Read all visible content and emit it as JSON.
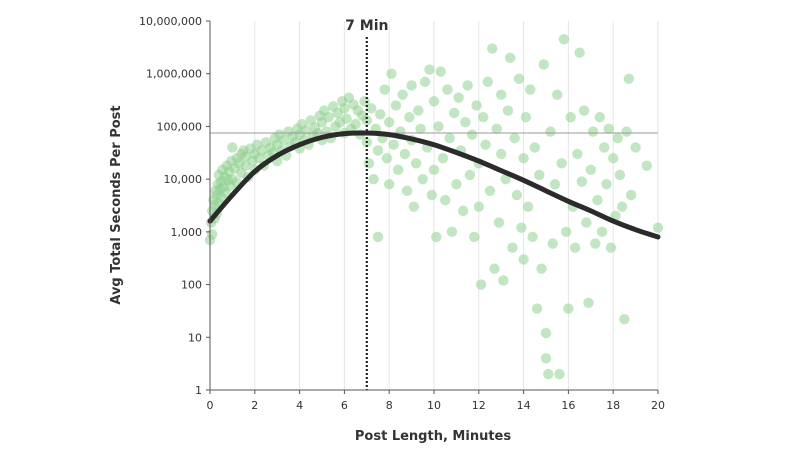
{
  "chart_data": {
    "type": "scatter",
    "title": "",
    "xlabel": "Post Length, Minutes",
    "ylabel": "Avg Total Seconds Per Post",
    "xlim": [
      0,
      20
    ],
    "ylim": [
      1,
      10000000
    ],
    "y_scale": "log",
    "x_ticks": [
      0,
      2,
      4,
      6,
      8,
      10,
      12,
      14,
      16,
      18,
      20
    ],
    "x_tick_labels": [
      "0",
      "2",
      "4",
      "6",
      "8",
      "10",
      "12",
      "14",
      "16",
      "18",
      "20"
    ],
    "y_ticks": [
      1,
      10,
      100,
      1000,
      10000,
      100000,
      1000000,
      10000000
    ],
    "y_tick_labels": [
      "1",
      "10",
      "100",
      "1,000",
      "10,000",
      "100,000",
      "1,000,000",
      "10,000,000"
    ],
    "grid": "vertical",
    "colors": {
      "points": "#8fcf8f",
      "curve": "#2b2b2b",
      "reference": "#999999",
      "grid": "#e6e6e6"
    },
    "annotations": [
      {
        "text": "7 Min",
        "x": 7,
        "style": "vertical-dotted-line"
      },
      {
        "style": "horizontal-reference-line",
        "y": 75000
      }
    ],
    "fit_curve": {
      "name": "",
      "x": [
        0,
        1,
        2,
        3,
        4,
        5,
        6,
        7,
        8,
        9,
        10,
        11,
        12,
        13,
        14,
        15,
        16,
        17,
        18,
        19,
        20
      ],
      "y": [
        1600,
        5000,
        14000,
        28000,
        45000,
        62000,
        73000,
        75000,
        70000,
        58000,
        45000,
        32000,
        22000,
        14500,
        9500,
        6000,
        3800,
        2500,
        1600,
        1100,
        800
      ]
    },
    "series": [
      {
        "points": [
          [
            0.0,
            700
          ],
          [
            0.05,
            1500
          ],
          [
            0.1,
            2500
          ],
          [
            0.1,
            900
          ],
          [
            0.15,
            4000
          ],
          [
            0.2,
            1800
          ],
          [
            0.2,
            3200
          ],
          [
            0.25,
            6000
          ],
          [
            0.3,
            2200
          ],
          [
            0.3,
            5000
          ],
          [
            0.35,
            8000
          ],
          [
            0.4,
            3500
          ],
          [
            0.4,
            12000
          ],
          [
            0.45,
            6500
          ],
          [
            0.5,
            9000
          ],
          [
            0.5,
            4500
          ],
          [
            0.55,
            15000
          ],
          [
            0.6,
            7000
          ],
          [
            0.65,
            11000
          ],
          [
            0.7,
            5500
          ],
          [
            0.75,
            18000
          ],
          [
            0.8,
            9500
          ],
          [
            0.85,
            14000
          ],
          [
            0.9,
            7500
          ],
          [
            0.95,
            22000
          ],
          [
            1.0,
            10000
          ],
          [
            1.0,
            40000
          ],
          [
            1.1,
            16000
          ],
          [
            1.2,
            25000
          ],
          [
            1.2,
            8500
          ],
          [
            1.3,
            20000
          ],
          [
            1.4,
            30000
          ],
          [
            1.4,
            13000
          ],
          [
            1.5,
            35000
          ],
          [
            1.6,
            18000
          ],
          [
            1.6,
            27000
          ],
          [
            1.7,
            11000
          ],
          [
            1.8,
            38000
          ],
          [
            1.9,
            22000
          ],
          [
            2.0,
            30000
          ],
          [
            2.0,
            15000
          ],
          [
            2.1,
            45000
          ],
          [
            2.2,
            25000
          ],
          [
            2.3,
            35000
          ],
          [
            2.4,
            18000
          ],
          [
            2.5,
            50000
          ],
          [
            2.6,
            28000
          ],
          [
            2.7,
            40000
          ],
          [
            2.8,
            32000
          ],
          [
            2.9,
            60000
          ],
          [
            3.0,
            22000
          ],
          [
            3.0,
            45000
          ],
          [
            3.1,
            70000
          ],
          [
            3.2,
            35000
          ],
          [
            3.3,
            55000
          ],
          [
            3.4,
            28000
          ],
          [
            3.5,
            80000
          ],
          [
            3.6,
            42000
          ],
          [
            3.7,
            65000
          ],
          [
            3.8,
            50000
          ],
          [
            3.9,
            90000
          ],
          [
            4.0,
            38000
          ],
          [
            4.0,
            70000
          ],
          [
            4.1,
            110000
          ],
          [
            4.2,
            55000
          ],
          [
            4.3,
            85000
          ],
          [
            4.4,
            45000
          ],
          [
            4.5,
            130000
          ],
          [
            4.6,
            65000
          ],
          [
            4.7,
            95000
          ],
          [
            4.8,
            75000
          ],
          [
            4.9,
            160000
          ],
          [
            5.0,
            55000
          ],
          [
            5.0,
            120000
          ],
          [
            5.1,
            200000
          ],
          [
            5.2,
            80000
          ],
          [
            5.3,
            150000
          ],
          [
            5.4,
            60000
          ],
          [
            5.5,
            240000
          ],
          [
            5.6,
            100000
          ],
          [
            5.7,
            180000
          ],
          [
            5.8,
            120000
          ],
          [
            5.9,
            300000
          ],
          [
            6.0,
            75000
          ],
          [
            6.0,
            220000
          ],
          [
            6.1,
            140000
          ],
          [
            6.2,
            350000
          ],
          [
            6.3,
            90000
          ],
          [
            6.4,
            260000
          ],
          [
            6.5,
            110000
          ],
          [
            6.6,
            200000
          ],
          [
            6.7,
            70000
          ],
          [
            6.8,
            160000
          ],
          [
            6.9,
            300000
          ],
          [
            7.0,
            50000
          ],
          [
            7.0,
            130000
          ],
          [
            7.1,
            20000
          ],
          [
            7.2,
            220000
          ],
          [
            7.3,
            10000
          ],
          [
            7.4,
            90000
          ],
          [
            7.5,
            35000
          ],
          [
            7.5,
            800
          ],
          [
            7.6,
            170000
          ],
          [
            7.7,
            60000
          ],
          [
            7.8,
            500000
          ],
          [
            7.9,
            25000
          ],
          [
            8.0,
            120000
          ],
          [
            8.0,
            8000
          ],
          [
            8.1,
            1000000
          ],
          [
            8.2,
            45000
          ],
          [
            8.3,
            250000
          ],
          [
            8.4,
            15000
          ],
          [
            8.5,
            80000
          ],
          [
            8.6,
            400000
          ],
          [
            8.7,
            30000
          ],
          [
            8.8,
            6000
          ],
          [
            8.9,
            150000
          ],
          [
            9.0,
            55000
          ],
          [
            9.0,
            600000
          ],
          [
            9.1,
            3000
          ],
          [
            9.2,
            20000
          ],
          [
            9.3,
            200000
          ],
          [
            9.4,
            90000
          ],
          [
            9.5,
            10000
          ],
          [
            9.6,
            700000
          ],
          [
            9.7,
            40000
          ],
          [
            9.8,
            1200000
          ],
          [
            9.9,
            5000
          ],
          [
            10.0,
            300000
          ],
          [
            10.0,
            15000
          ],
          [
            10.1,
            800
          ],
          [
            10.2,
            100000
          ],
          [
            10.3,
            1100000
          ],
          [
            10.4,
            25000
          ],
          [
            10.5,
            4000
          ],
          [
            10.6,
            500000
          ],
          [
            10.7,
            60000
          ],
          [
            10.8,
            1000
          ],
          [
            10.9,
            180000
          ],
          [
            11.0,
            8000
          ],
          [
            11.1,
            350000
          ],
          [
            11.2,
            35000
          ],
          [
            11.3,
            2500
          ],
          [
            11.4,
            120000
          ],
          [
            11.5,
            600000
          ],
          [
            11.6,
            12000
          ],
          [
            11.7,
            70000
          ],
          [
            11.8,
            800
          ],
          [
            11.9,
            250000
          ],
          [
            12.0,
            20000
          ],
          [
            12.0,
            3000
          ],
          [
            12.1,
            100
          ],
          [
            12.2,
            150000
          ],
          [
            12.3,
            45000
          ],
          [
            12.4,
            700000
          ],
          [
            12.5,
            6000
          ],
          [
            12.6,
            3000000
          ],
          [
            12.7,
            200
          ],
          [
            12.8,
            90000
          ],
          [
            12.9,
            1500
          ],
          [
            13.0,
            30000
          ],
          [
            13.0,
            400000
          ],
          [
            13.1,
            120
          ],
          [
            13.2,
            10000
          ],
          [
            13.3,
            200000
          ],
          [
            13.4,
            2000000
          ],
          [
            13.5,
            500
          ],
          [
            13.6,
            60000
          ],
          [
            13.7,
            5000
          ],
          [
            13.8,
            800000
          ],
          [
            13.9,
            1200
          ],
          [
            14.0,
            25000
          ],
          [
            14.0,
            300
          ],
          [
            14.1,
            150000
          ],
          [
            14.2,
            3000
          ],
          [
            14.3,
            500000
          ],
          [
            14.4,
            800
          ],
          [
            14.5,
            40000
          ],
          [
            14.6,
            35
          ],
          [
            14.7,
            12000
          ],
          [
            14.8,
            200
          ],
          [
            14.9,
            1500000
          ],
          [
            15.0,
            4
          ],
          [
            15.0,
            12
          ],
          [
            15.1,
            2
          ],
          [
            15.2,
            80000
          ],
          [
            15.3,
            600
          ],
          [
            15.4,
            8000
          ],
          [
            15.5,
            400000
          ],
          [
            15.6,
            2
          ],
          [
            15.7,
            20000
          ],
          [
            15.8,
            4500000
          ],
          [
            15.9,
            1000
          ],
          [
            16.0,
            35
          ],
          [
            16.1,
            150000
          ],
          [
            16.2,
            3000
          ],
          [
            16.3,
            500
          ],
          [
            16.4,
            30000
          ],
          [
            16.5,
            2500000
          ],
          [
            16.6,
            9000
          ],
          [
            16.7,
            200000
          ],
          [
            16.8,
            1500
          ],
          [
            16.9,
            45
          ],
          [
            17.0,
            15000
          ],
          [
            17.1,
            80000
          ],
          [
            17.2,
            600
          ],
          [
            17.3,
            4000
          ],
          [
            17.4,
            150000
          ],
          [
            17.5,
            1000
          ],
          [
            17.6,
            40000
          ],
          [
            17.7,
            8000
          ],
          [
            17.8,
            90000
          ],
          [
            17.9,
            500
          ],
          [
            18.0,
            25000
          ],
          [
            18.1,
            2000
          ],
          [
            18.2,
            60000
          ],
          [
            18.3,
            12000
          ],
          [
            18.4,
            3000
          ],
          [
            18.5,
            22
          ],
          [
            18.6,
            80000
          ],
          [
            18.7,
            800000
          ],
          [
            18.8,
            5000
          ],
          [
            19.0,
            40000
          ],
          [
            19.5,
            18000
          ],
          [
            20.0,
            1200
          ]
        ]
      }
    ]
  }
}
